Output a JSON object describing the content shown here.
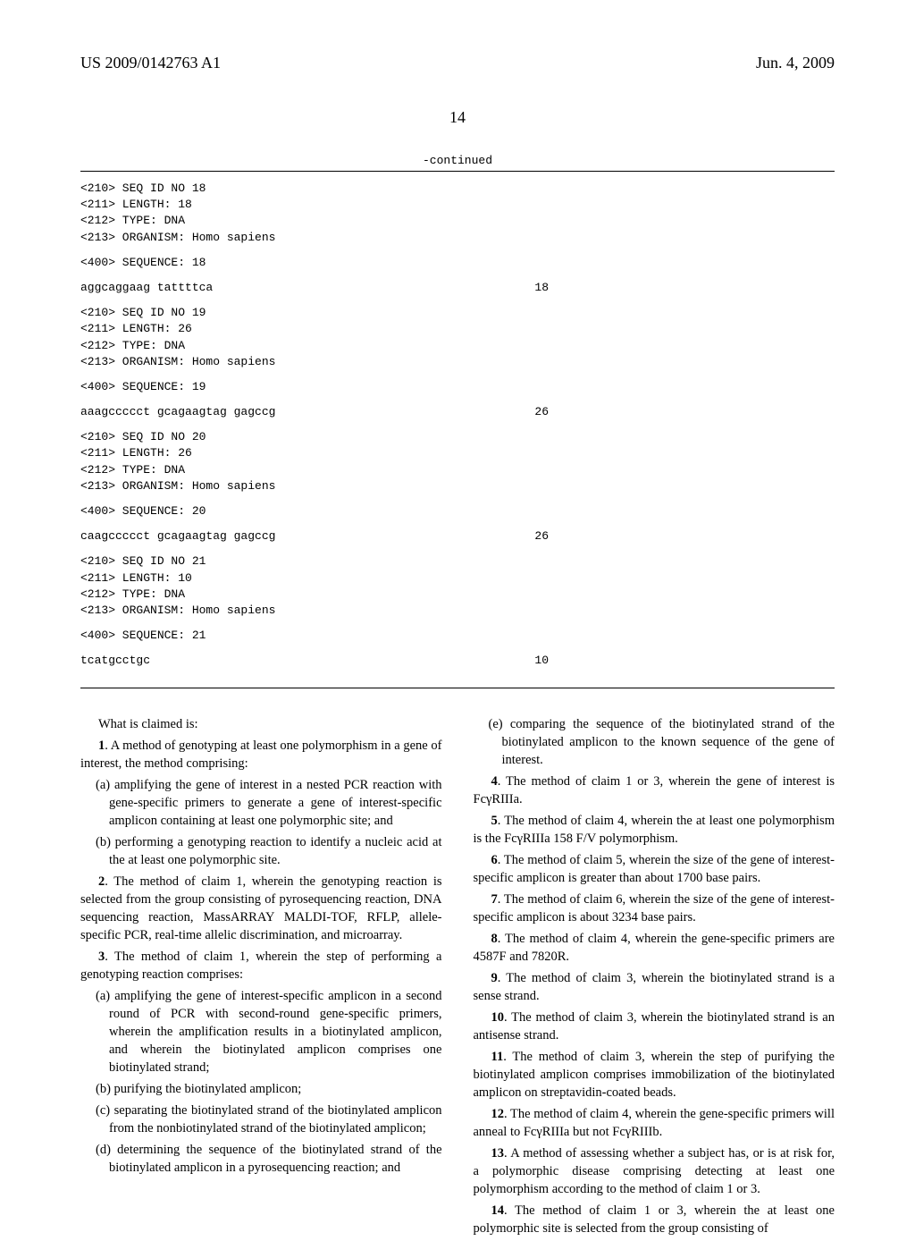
{
  "header": {
    "left": "US 2009/0142763 A1",
    "right": "Jun. 4, 2009"
  },
  "pageNumber": "14",
  "continued": "-continued",
  "sequences": [
    {
      "lines": [
        "<210> SEQ ID NO 18",
        "<211> LENGTH: 18",
        "<212> TYPE: DNA",
        "<213> ORGANISM: Homo sapiens"
      ],
      "seqLabel": "<400> SEQUENCE: 18",
      "data": "aggcaggaag tattttca",
      "length": "18"
    },
    {
      "lines": [
        "<210> SEQ ID NO 19",
        "<211> LENGTH: 26",
        "<212> TYPE: DNA",
        "<213> ORGANISM: Homo sapiens"
      ],
      "seqLabel": "<400> SEQUENCE: 19",
      "data": "aaagccccct gcagaagtag gagccg",
      "length": "26"
    },
    {
      "lines": [
        "<210> SEQ ID NO 20",
        "<211> LENGTH: 26",
        "<212> TYPE: DNA",
        "<213> ORGANISM: Homo sapiens"
      ],
      "seqLabel": "<400> SEQUENCE: 20",
      "data": "caagccccct gcagaagtag gagccg",
      "length": "26"
    },
    {
      "lines": [
        "<210> SEQ ID NO 21",
        "<211> LENGTH: 10",
        "<212> TYPE: DNA",
        "<213> ORGANISM: Homo sapiens"
      ],
      "seqLabel": "<400> SEQUENCE: 21",
      "data": "tcatgcctgc",
      "length": "10"
    }
  ],
  "claims": {
    "intro": "What is claimed is:",
    "left": [
      {
        "type": "para",
        "text": "1. A method of genotyping at least one polymorphism in a gene of interest, the method comprising:"
      },
      {
        "type": "sub",
        "text": "(a) amplifying the gene of interest in a nested PCR reaction with gene-specific primers to generate a gene of interest-specific amplicon containing at least one polymorphic site; and"
      },
      {
        "type": "sub",
        "text": "(b) performing a genotyping reaction to identify a nucleic acid at the at least one polymorphic site."
      },
      {
        "type": "para",
        "text": "2. The method of claim 1, wherein the genotyping reaction is selected from the group consisting of pyrosequencing reaction, DNA sequencing reaction, MassARRAY MALDI-TOF, RFLP, allele-specific PCR, real-time allelic discrimination, and microarray."
      },
      {
        "type": "para",
        "text": "3. The method of claim 1, wherein the step of performing a genotyping reaction comprises:"
      },
      {
        "type": "sub",
        "text": "(a) amplifying the gene of interest-specific amplicon in a second round of PCR with second-round gene-specific primers, wherein the amplification results in a biotinylated amplicon, and wherein the biotinylated amplicon comprises one biotinylated strand;"
      },
      {
        "type": "sub",
        "text": "(b) purifying the biotinylated amplicon;"
      },
      {
        "type": "sub",
        "text": "(c) separating the biotinylated strand of the biotinylated amplicon from the nonbiotinylated strand of the biotinylated amplicon;"
      },
      {
        "type": "sub",
        "text": "(d) determining the sequence of the biotinylated strand of the biotinylated amplicon in a pyrosequencing reaction; and"
      }
    ],
    "right": [
      {
        "type": "sub",
        "text": "(e) comparing the sequence of the biotinylated strand of the biotinylated amplicon to the known sequence of the gene of interest."
      },
      {
        "type": "para",
        "text": "4. The method of claim 1 or 3, wherein the gene of interest is FcγRIIIa."
      },
      {
        "type": "para",
        "text": "5. The method of claim 4, wherein the at least one polymorphism is the FcγRIIIa 158 F/V polymorphism."
      },
      {
        "type": "para",
        "text": "6. The method of claim 5, wherein the size of the gene of interest-specific amplicon is greater than about 1700 base pairs."
      },
      {
        "type": "para",
        "text": "7. The method of claim 6, wherein the size of the gene of interest-specific amplicon is about 3234 base pairs."
      },
      {
        "type": "para",
        "text": "8. The method of claim 4, wherein the gene-specific primers are 4587F and 7820R."
      },
      {
        "type": "para",
        "text": "9. The method of claim 3, wherein the biotinylated strand is a sense strand."
      },
      {
        "type": "para",
        "text": "10. The method of claim 3, wherein the biotinylated strand is an antisense strand."
      },
      {
        "type": "para",
        "text": "11. The method of claim 3, wherein the step of purifying the biotinylated amplicon comprises immobilization of the biotinylated amplicon on streptavidin-coated beads."
      },
      {
        "type": "para",
        "text": "12. The method of claim 4, wherein the gene-specific primers will anneal to FcγRIIIa but not FcγRIIIb."
      },
      {
        "type": "para",
        "text": "13. A method of assessing whether a subject has, or is at risk for, a polymorphic disease comprising detecting at least one polymorphism according to the method of claim 1 or 3."
      },
      {
        "type": "para",
        "text": "14. The method of claim 1 or 3, wherein the at least one polymorphic site is selected from the group consisting of"
      }
    ]
  }
}
